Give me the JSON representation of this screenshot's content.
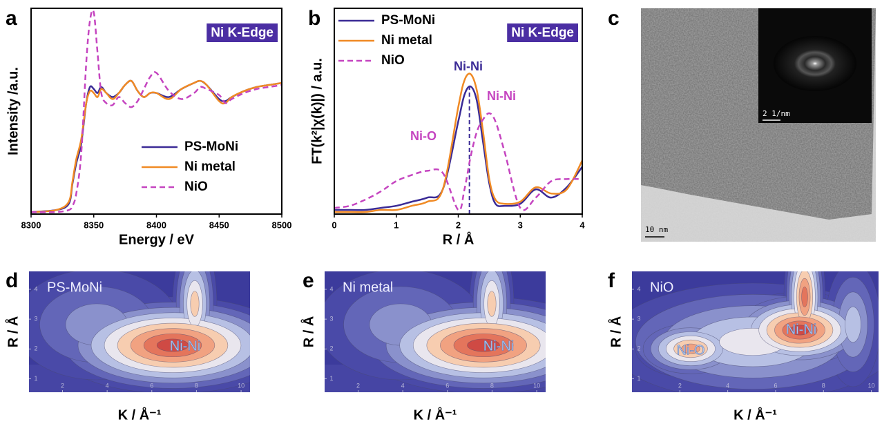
{
  "chart_data": [
    {
      "type": "line",
      "label": "a",
      "badge": "Ni K-Edge",
      "xlabel": "Energy / eV",
      "ylabel": "Intensity /a.u.",
      "legend": "lower right",
      "x": [
        8300,
        8320,
        8330,
        8333,
        8336,
        8340,
        8344,
        8347,
        8350,
        8353,
        8356,
        8360,
        8365,
        8370,
        8375,
        8380,
        8385,
        8390,
        8395,
        8400,
        8410,
        8420,
        8430,
        8435,
        8440,
        8450,
        8455,
        8460,
        8470,
        8480,
        8490,
        8500
      ],
      "xlim": [
        8300,
        8500
      ],
      "xticks": [
        8300,
        8350,
        8400,
        8450,
        8500
      ],
      "ylim": [
        0,
        1.02
      ],
      "series": [
        {
          "name": "PS-MoNi",
          "color": "#3b2b96",
          "dashed": false,
          "values": [
            0.01,
            0.02,
            0.05,
            0.15,
            0.25,
            0.35,
            0.55,
            0.63,
            0.62,
            0.6,
            0.63,
            0.6,
            0.58,
            0.6,
            0.64,
            0.66,
            0.61,
            0.58,
            0.6,
            0.6,
            0.58,
            0.62,
            0.65,
            0.66,
            0.64,
            0.57,
            0.56,
            0.58,
            0.61,
            0.63,
            0.64,
            0.65
          ]
        },
        {
          "name": "Ni metal",
          "color": "#f08a24",
          "dashed": false,
          "values": [
            0.01,
            0.02,
            0.06,
            0.16,
            0.27,
            0.37,
            0.55,
            0.61,
            0.6,
            0.58,
            0.62,
            0.6,
            0.57,
            0.6,
            0.64,
            0.66,
            0.61,
            0.58,
            0.6,
            0.6,
            0.57,
            0.62,
            0.65,
            0.66,
            0.64,
            0.56,
            0.55,
            0.58,
            0.61,
            0.63,
            0.64,
            0.65
          ]
        },
        {
          "name": "NiO",
          "color": "#c545c0",
          "dashed": true,
          "values": [
            0.01,
            0.01,
            0.02,
            0.04,
            0.1,
            0.3,
            0.75,
            0.96,
            1.0,
            0.8,
            0.6,
            0.55,
            0.54,
            0.58,
            0.55,
            0.53,
            0.56,
            0.62,
            0.68,
            0.7,
            0.61,
            0.57,
            0.6,
            0.63,
            0.62,
            0.59,
            0.55,
            0.57,
            0.6,
            0.62,
            0.63,
            0.64
          ]
        }
      ]
    },
    {
      "type": "line",
      "label": "b",
      "badge": "Ni K-Edge",
      "xlabel": "R / Å",
      "ylabel": "FT(k²|χ(k)|) / a.u.",
      "legend": "upper left",
      "x": [
        0,
        0.25,
        0.5,
        0.75,
        1,
        1.25,
        1.5,
        1.75,
        2,
        2.1,
        2.2,
        2.3,
        2.4,
        2.5,
        2.6,
        2.75,
        3,
        3.25,
        3.5,
        3.75,
        4
      ],
      "xlim": [
        0,
        4
      ],
      "xticks": [
        0,
        1,
        2,
        3,
        4
      ],
      "ylim": [
        0,
        1
      ],
      "marker": 2.18,
      "annotations": [
        {
          "text": "Ni-Ni",
          "color": "#3b2b96"
        },
        {
          "text": "Ni-Ni",
          "color": "#c545c0"
        },
        {
          "text": "Ni-O",
          "color": "#c545c0"
        }
      ],
      "series": [
        {
          "name": "PS-MoNi",
          "color": "#3b2b96",
          "dashed": false,
          "values": [
            0.02,
            0.02,
            0.02,
            0.03,
            0.04,
            0.06,
            0.08,
            0.12,
            0.45,
            0.58,
            0.62,
            0.55,
            0.35,
            0.15,
            0.05,
            0.04,
            0.05,
            0.12,
            0.08,
            0.13,
            0.23
          ]
        },
        {
          "name": "Ni metal",
          "color": "#f08a24",
          "dashed": false,
          "values": [
            0.01,
            0.01,
            0.01,
            0.02,
            0.02,
            0.04,
            0.06,
            0.12,
            0.52,
            0.65,
            0.68,
            0.6,
            0.4,
            0.17,
            0.07,
            0.05,
            0.06,
            0.13,
            0.1,
            0.12,
            0.26
          ]
        },
        {
          "name": "NiO",
          "color": "#c545c0",
          "dashed": true,
          "values": [
            0.03,
            0.04,
            0.07,
            0.11,
            0.16,
            0.19,
            0.21,
            0.2,
            0.02,
            0.12,
            0.28,
            0.4,
            0.46,
            0.49,
            0.45,
            0.3,
            0.03,
            0.08,
            0.16,
            0.17,
            0.17
          ]
        }
      ]
    },
    {
      "type": "contour",
      "label": "d",
      "title": "PS-MoNi",
      "xlabel": "K / Å⁻¹",
      "ylabel": "R / Å",
      "xlim": [
        0.5,
        10.4
      ],
      "xticks": [
        2,
        4,
        6,
        8,
        10
      ],
      "ylim": [
        0.55,
        4.6
      ],
      "yticks": [
        1,
        2,
        3,
        4
      ],
      "annotations": [
        {
          "text": "Ni-Ni"
        }
      ]
    },
    {
      "type": "contour",
      "label": "e",
      "title": "Ni metal",
      "xlabel": "K / Å⁻¹",
      "ylabel": "R / Å",
      "xlim": [
        0.5,
        10.4
      ],
      "xticks": [
        2,
        4,
        6,
        8,
        10
      ],
      "ylim": [
        0.55,
        4.6
      ],
      "yticks": [
        1,
        2,
        3,
        4
      ],
      "annotations": [
        {
          "text": "Ni-Ni"
        }
      ]
    },
    {
      "type": "contour",
      "label": "f",
      "title": "NiO",
      "xlabel": "K / Å⁻¹",
      "ylabel": "R / Å",
      "xlim": [
        0,
        10.3
      ],
      "xticks": [
        2,
        4,
        6,
        8,
        10
      ],
      "ylim": [
        0.55,
        4.6
      ],
      "yticks": [
        1,
        2,
        3,
        4
      ],
      "annotations": [
        {
          "text": "Ni-O"
        },
        {
          "text": "Ni-Ni"
        }
      ]
    }
  ],
  "image": {
    "label": "c",
    "scale_bar": "10 nm",
    "inset_scale_bar": "2 1/nm"
  }
}
